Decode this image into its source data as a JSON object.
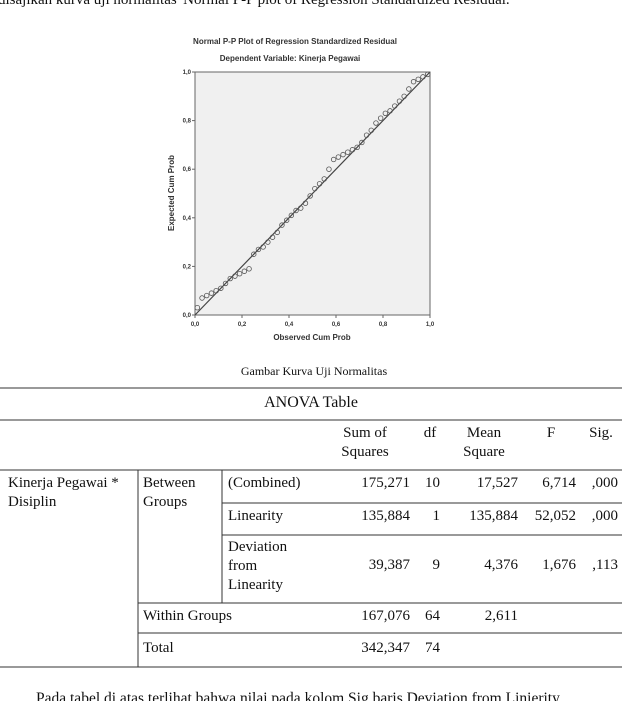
{
  "intro_text": "disajikan kurva uji normalitas 'Normal P-P plot of Regression Standardized Residual.",
  "chart_data": {
    "type": "scatter",
    "title": "Normal P-P Plot of Regression Standardized Residual",
    "subtitle": "Dependent Variable: Kinerja Pegawai",
    "x_label": "Observed Cum Prob",
    "y_label": "Expected Cum Prob",
    "x": [
      0.01,
      0.03,
      0.05,
      0.07,
      0.09,
      0.11,
      0.13,
      0.15,
      0.17,
      0.19,
      0.21,
      0.23,
      0.25,
      0.27,
      0.29,
      0.31,
      0.33,
      0.35,
      0.37,
      0.39,
      0.41,
      0.43,
      0.45,
      0.47,
      0.49,
      0.51,
      0.53,
      0.55,
      0.57,
      0.59,
      0.61,
      0.63,
      0.65,
      0.67,
      0.69,
      0.71,
      0.73,
      0.75,
      0.77,
      0.79,
      0.81,
      0.83,
      0.85,
      0.87,
      0.89,
      0.91,
      0.93,
      0.95,
      0.97,
      0.99
    ],
    "values": [
      0.03,
      0.07,
      0.08,
      0.09,
      0.1,
      0.11,
      0.13,
      0.15,
      0.16,
      0.17,
      0.18,
      0.19,
      0.25,
      0.27,
      0.28,
      0.3,
      0.32,
      0.34,
      0.37,
      0.39,
      0.41,
      0.43,
      0.44,
      0.46,
      0.49,
      0.52,
      0.54,
      0.56,
      0.6,
      0.64,
      0.65,
      0.66,
      0.67,
      0.68,
      0.69,
      0.71,
      0.74,
      0.76,
      0.79,
      0.81,
      0.83,
      0.84,
      0.86,
      0.88,
      0.9,
      0.93,
      0.96,
      0.97,
      0.98,
      0.99
    ],
    "xlim": [
      0,
      1
    ],
    "ylim": [
      0,
      1
    ],
    "xticks": [
      {
        "value": 0,
        "label": "0,0"
      },
      {
        "value": 0.2,
        "label": "0,2"
      },
      {
        "value": 0.4,
        "label": "0,4"
      },
      {
        "value": 0.6,
        "label": "0,6"
      },
      {
        "value": 0.8,
        "label": "0,8"
      },
      {
        "value": 1,
        "label": "1,0"
      }
    ],
    "yticks": [
      {
        "value": 0,
        "label": "0,0"
      },
      {
        "value": 0.2,
        "label": "0,2"
      },
      {
        "value": 0.4,
        "label": "0,4"
      },
      {
        "value": 0.6,
        "label": "0,6"
      },
      {
        "value": 0.8,
        "label": "0,8"
      },
      {
        "value": 1,
        "label": "1,0"
      }
    ],
    "color": "#555555"
  },
  "caption": "Gambar Kurva Uji Normalitas",
  "table": {
    "title": "ANOVA Table",
    "header": [
      "Sum of Squares",
      "df",
      "Mean Square",
      "F",
      "Sig."
    ],
    "row_label": "Kinerja Pegawai * Disiplin",
    "group": "Between Groups",
    "rows": [
      {
        "label": "(Combined)",
        "cells": [
          "175,271",
          "10",
          "17,527",
          "6,714",
          ",000"
        ]
      },
      {
        "label": "Linearity",
        "cells": [
          "135,884",
          "1",
          "135,884",
          "52,052",
          ",000"
        ]
      },
      {
        "label": "Deviation from Linearity",
        "cells": [
          "39,387",
          "9",
          "4,376",
          "1,676",
          ",113"
        ]
      },
      {
        "label": "Within Groups",
        "cells": [
          "167,076",
          "64",
          "2,611"
        ]
      },
      {
        "label": "Total",
        "cells": [
          "342,347",
          "74"
        ]
      }
    ]
  },
  "paragraph": "Pada tabel di atas terlihat bahwa nilai pada kolom Sig baris Deviation from Linierity"
}
